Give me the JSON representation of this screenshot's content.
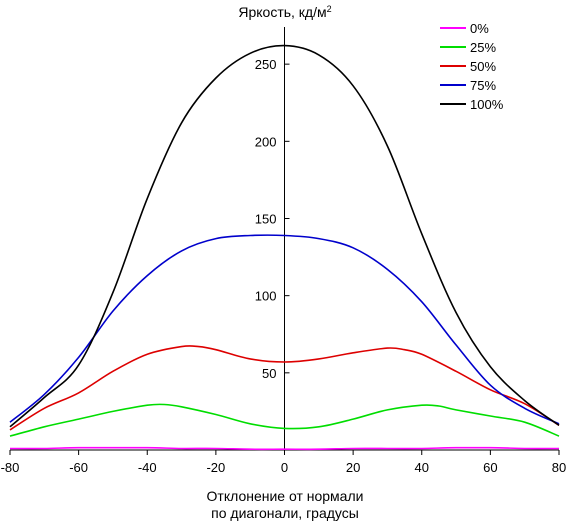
{
  "chart_data": {
    "type": "line",
    "ylabel": "Яркость, кд/м",
    "ylabel_sup": "2",
    "xlabel_line1": "Отклонение от нормали",
    "xlabel_line2": "по диагонали, градусы",
    "xlim": [
      -80,
      80
    ],
    "ylim": [
      0,
      265
    ],
    "x_ticks": [
      -80,
      -60,
      -40,
      -20,
      0,
      20,
      40,
      60,
      80
    ],
    "y_ticks": [
      50,
      100,
      150,
      200,
      250
    ],
    "grid": false,
    "legend_position": "top-right",
    "series": [
      {
        "name": "0%",
        "color": "#ff00ff",
        "points": [
          [
            -80,
            1
          ],
          [
            -70,
            1
          ],
          [
            -60,
            1.5
          ],
          [
            -50,
            1.5
          ],
          [
            -40,
            1.5
          ],
          [
            -30,
            1
          ],
          [
            -20,
            1
          ],
          [
            -10,
            0.5
          ],
          [
            0,
            0.5
          ],
          [
            10,
            0.5
          ],
          [
            20,
            1
          ],
          [
            30,
            1
          ],
          [
            40,
            1
          ],
          [
            50,
            1.5
          ],
          [
            60,
            1.5
          ],
          [
            70,
            1
          ],
          [
            80,
            1
          ]
        ]
      },
      {
        "name": "25%",
        "color": "#00dd00",
        "points": [
          [
            -80,
            9
          ],
          [
            -70,
            15
          ],
          [
            -60,
            20
          ],
          [
            -50,
            25
          ],
          [
            -40,
            29
          ],
          [
            -35,
            29.5
          ],
          [
            -30,
            28
          ],
          [
            -20,
            23
          ],
          [
            -10,
            17
          ],
          [
            0,
            14
          ],
          [
            10,
            15
          ],
          [
            20,
            20
          ],
          [
            30,
            26
          ],
          [
            40,
            29
          ],
          [
            45,
            28.5
          ],
          [
            50,
            26
          ],
          [
            60,
            22
          ],
          [
            70,
            18
          ],
          [
            80,
            9
          ]
        ]
      },
      {
        "name": "50%",
        "color": "#dd0000",
        "points": [
          [
            -80,
            13
          ],
          [
            -70,
            27
          ],
          [
            -60,
            37
          ],
          [
            -50,
            51
          ],
          [
            -40,
            62
          ],
          [
            -30,
            67
          ],
          [
            -25,
            67
          ],
          [
            -20,
            65
          ],
          [
            -10,
            59
          ],
          [
            0,
            57
          ],
          [
            10,
            59
          ],
          [
            20,
            63
          ],
          [
            30,
            66
          ],
          [
            35,
            65
          ],
          [
            40,
            62
          ],
          [
            50,
            51
          ],
          [
            60,
            39
          ],
          [
            70,
            30
          ],
          [
            80,
            16
          ]
        ]
      },
      {
        "name": "75%",
        "color": "#0000cc",
        "points": [
          [
            -80,
            18
          ],
          [
            -70,
            36
          ],
          [
            -60,
            60
          ],
          [
            -50,
            90
          ],
          [
            -40,
            113
          ],
          [
            -30,
            129
          ],
          [
            -20,
            137
          ],
          [
            -10,
            139
          ],
          [
            0,
            139
          ],
          [
            10,
            137
          ],
          [
            20,
            131
          ],
          [
            30,
            117
          ],
          [
            40,
            96
          ],
          [
            50,
            68
          ],
          [
            60,
            42
          ],
          [
            70,
            27
          ],
          [
            80,
            17
          ]
        ]
      },
      {
        "name": "100%",
        "color": "#000000",
        "points": [
          [
            -80,
            15
          ],
          [
            -70,
            34
          ],
          [
            -60,
            55
          ],
          [
            -50,
            102
          ],
          [
            -40,
            163
          ],
          [
            -30,
            212
          ],
          [
            -20,
            241
          ],
          [
            -10,
            257
          ],
          [
            0,
            262
          ],
          [
            10,
            256
          ],
          [
            20,
            236
          ],
          [
            30,
            197
          ],
          [
            40,
            140
          ],
          [
            50,
            89
          ],
          [
            60,
            54
          ],
          [
            70,
            32
          ],
          [
            80,
            16
          ]
        ]
      }
    ]
  }
}
